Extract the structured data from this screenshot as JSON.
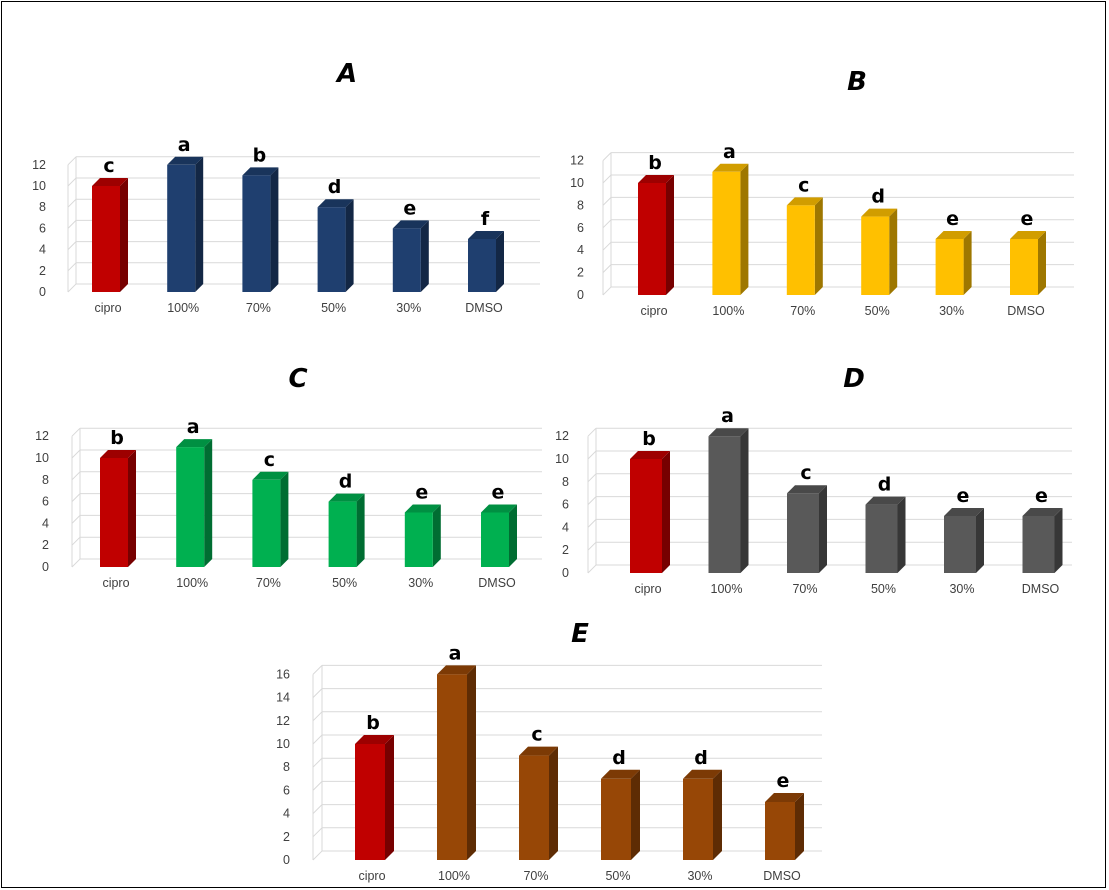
{
  "chart_data": [
    {
      "type": "bar",
      "title": "A",
      "categories": [
        "cipro",
        "100%",
        "70%",
        "50%",
        "30%",
        "DMSO"
      ],
      "values": [
        10,
        12,
        11,
        8,
        6,
        5
      ],
      "labels": [
        "c",
        "a",
        "b",
        "d",
        "e",
        "f"
      ],
      "colors": [
        "#c00000",
        "#1f3f6f",
        "#1f3f6f",
        "#1f3f6f",
        "#1f3f6f",
        "#1f3f6f"
      ],
      "yticks": [
        0,
        2,
        4,
        6,
        8,
        10,
        12
      ],
      "ylim": [
        0,
        12
      ],
      "grid": true
    },
    {
      "type": "bar",
      "title": "B",
      "categories": [
        "cipro",
        "100%",
        "70%",
        "50%",
        "30%",
        "DMSO"
      ],
      "values": [
        10,
        11,
        8,
        7,
        5,
        5
      ],
      "labels": [
        "b",
        "a",
        "c",
        "d",
        "e",
        "e"
      ],
      "colors": [
        "#c00000",
        "#ffc000",
        "#ffc000",
        "#ffc000",
        "#ffc000",
        "#ffc000"
      ],
      "yticks": [
        0,
        2,
        4,
        6,
        8,
        10,
        12
      ],
      "ylim": [
        0,
        12
      ],
      "grid": true
    },
    {
      "type": "bar",
      "title": "C",
      "categories": [
        "cipro",
        "100%",
        "70%",
        "50%",
        "30%",
        "DMSO"
      ],
      "values": [
        10,
        11,
        8,
        6,
        5,
        5
      ],
      "labels": [
        "b",
        "a",
        "c",
        "d",
        "e",
        "e"
      ],
      "colors": [
        "#c00000",
        "#00b050",
        "#00b050",
        "#00b050",
        "#00b050",
        "#00b050"
      ],
      "yticks": [
        0,
        2,
        4,
        6,
        8,
        10,
        12
      ],
      "ylim": [
        0,
        12
      ],
      "grid": true
    },
    {
      "type": "bar",
      "title": "D",
      "categories": [
        "cipro",
        "100%",
        "70%",
        "50%",
        "30%",
        "DMSO"
      ],
      "values": [
        10,
        12,
        7,
        6,
        5,
        5
      ],
      "labels": [
        "b",
        "a",
        "c",
        "d",
        "e",
        "e"
      ],
      "colors": [
        "#c00000",
        "#595959",
        "#595959",
        "#595959",
        "#595959",
        "#595959"
      ],
      "yticks": [
        0,
        2,
        4,
        6,
        8,
        10,
        12
      ],
      "ylim": [
        0,
        12
      ],
      "grid": true
    },
    {
      "type": "bar",
      "title": "E",
      "categories": [
        "cipro",
        "100%",
        "70%",
        "50%",
        "30%",
        "DMSO"
      ],
      "values": [
        10,
        16,
        9,
        7,
        7,
        5
      ],
      "labels": [
        "b",
        "a",
        "c",
        "d",
        "d",
        "e"
      ],
      "colors": [
        "#c00000",
        "#974706",
        "#974706",
        "#974706",
        "#974706",
        "#974706"
      ],
      "yticks": [
        0,
        2,
        4,
        6,
        8,
        10,
        12,
        14,
        16
      ],
      "ylim": [
        0,
        16
      ],
      "grid": true
    }
  ]
}
